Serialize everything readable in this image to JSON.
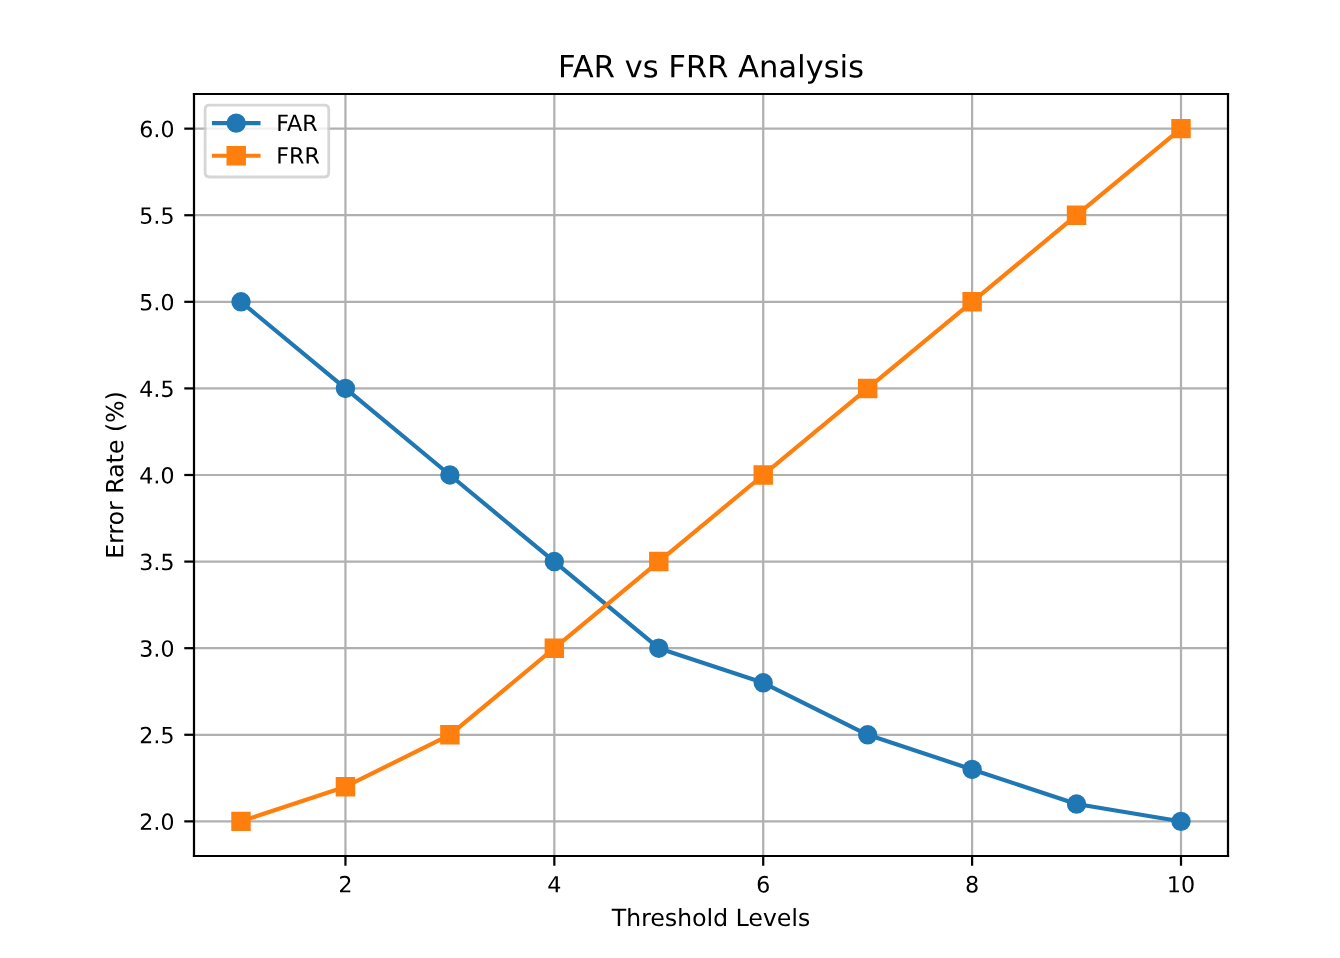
{
  "chart_data": {
    "type": "line",
    "title": "FAR vs FRR Analysis",
    "xlabel": "Threshold Levels",
    "ylabel": "Error Rate (%)",
    "x": [
      1,
      2,
      3,
      4,
      5,
      6,
      7,
      8,
      9,
      10
    ],
    "series": [
      {
        "name": "FAR",
        "color": "#1f77b4",
        "marker": "circle",
        "values": [
          5.0,
          4.5,
          4.0,
          3.5,
          3.0,
          2.8,
          2.5,
          2.3,
          2.1,
          2.0
        ]
      },
      {
        "name": "FRR",
        "color": "#ff7f0e",
        "marker": "square",
        "values": [
          2.0,
          2.2,
          2.5,
          3.0,
          3.5,
          4.0,
          4.5,
          5.0,
          5.5,
          6.0
        ]
      }
    ],
    "xlim": [
      0.55,
      10.45
    ],
    "ylim": [
      1.8,
      6.2
    ],
    "xticks": [
      2,
      4,
      6,
      8,
      10
    ],
    "yticks": [
      {
        "value": 2,
        "label": "2.0"
      },
      {
        "value": 2.5,
        "label": "2.5"
      },
      {
        "value": 3,
        "label": "3.0"
      },
      {
        "value": 3.5,
        "label": "3.5"
      },
      {
        "value": 4,
        "label": "4.0"
      },
      {
        "value": 4.5,
        "label": "4.5"
      },
      {
        "value": 5,
        "label": "5.0"
      },
      {
        "value": 5.5,
        "label": "5.5"
      },
      {
        "value": 6,
        "label": "6.0"
      }
    ],
    "grid": true,
    "legend": "top left",
    "line_style": "solid"
  }
}
